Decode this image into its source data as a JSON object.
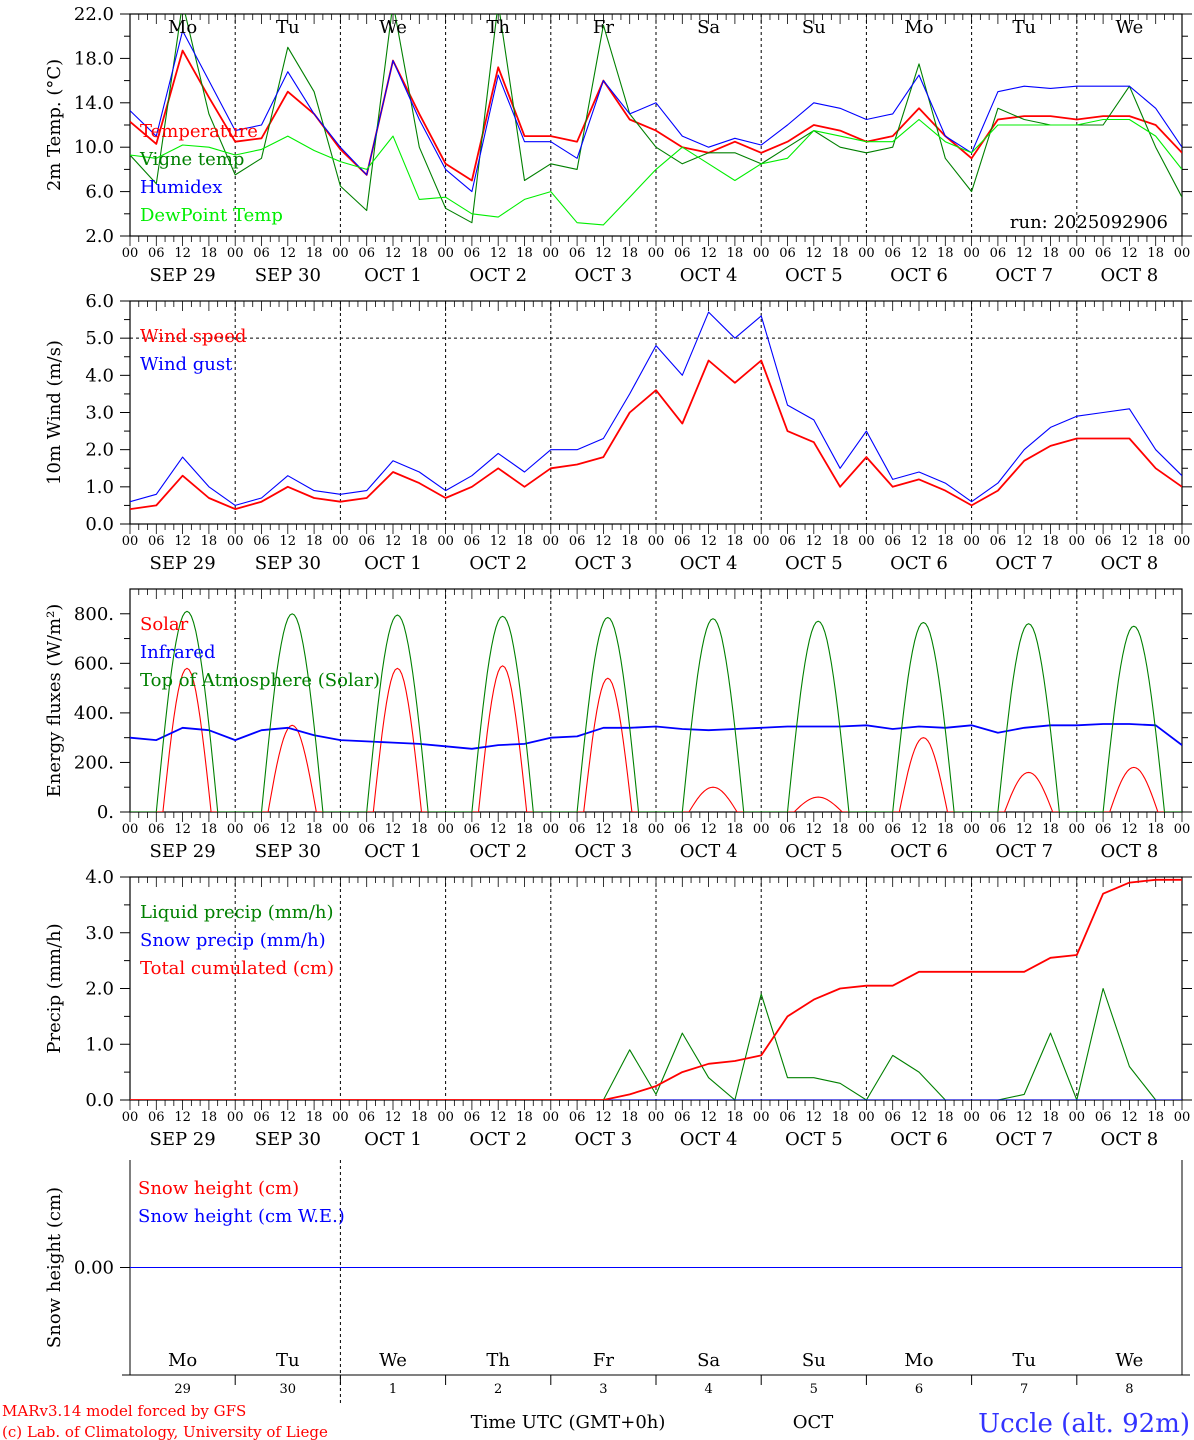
{
  "x_axis": {
    "hour_labels": [
      "00",
      "06",
      "12",
      "18"
    ],
    "date_labels": [
      "SEP  29",
      "SEP  30",
      "OCT   1",
      "OCT   2",
      "OCT   3",
      "OCT   4",
      "OCT   5",
      "OCT   6",
      "OCT   7",
      "OCT   8"
    ],
    "day_names": [
      {
        "name": "Mo",
        "weekend": false
      },
      {
        "name": "Tu",
        "weekend": false
      },
      {
        "name": "We",
        "weekend": false
      },
      {
        "name": "Th",
        "weekend": false
      },
      {
        "name": "Fr",
        "weekend": false
      },
      {
        "name": "Sa",
        "weekend": true
      },
      {
        "name": "Su",
        "weekend": true
      },
      {
        "name": "Mo",
        "weekend": false
      },
      {
        "name": "Tu",
        "weekend": false
      },
      {
        "name": "We",
        "weekend": false
      }
    ],
    "day_numbers": [
      "29",
      "30",
      "1",
      "2",
      "3",
      "4",
      "5",
      "6",
      "7",
      "8"
    ],
    "month": "OCT",
    "xlabel": "Time UTC (GMT+0h)",
    "weekend_color": "#ff0000"
  },
  "footer": {
    "model": "MARv3.14 model forced by GFS",
    "credit": "(c) Lab. of Climatology, University of Liege",
    "station": "Uccle (alt. 92m)"
  },
  "chart_data": [
    {
      "type": "line",
      "ylabel": "2m Temp. (°C)",
      "ylim": [
        2,
        22
      ],
      "yticks": [
        "2.0",
        "6.0",
        "10.0",
        "14.0",
        "18.0",
        "22.0"
      ],
      "annotation": "run: 2025092906",
      "x_step_hours": 6,
      "series": [
        {
          "name": "Temperature",
          "color": "#ff0000",
          "values": [
            12.3,
            10.3,
            18.7,
            14.5,
            10.5,
            10.8,
            15.0,
            13.0,
            9.8,
            7.5,
            17.8,
            13.0,
            8.5,
            7.0,
            17.2,
            11.0,
            11.0,
            10.5,
            16.0,
            12.5,
            11.5,
            10.0,
            9.5,
            10.5,
            9.5,
            10.5,
            12.0,
            11.5,
            10.5,
            11.0,
            13.5,
            11.0,
            9.0,
            12.5,
            12.8,
            12.8,
            12.5,
            12.8,
            12.8,
            12.0,
            9.5
          ]
        },
        {
          "name": "Vigne temp",
          "color": "#008000",
          "values": [
            9.3,
            6.7,
            23.0,
            13.0,
            7.5,
            9.0,
            19.0,
            15.0,
            6.5,
            4.3,
            23.0,
            10.0,
            4.5,
            3.2,
            23.0,
            7.0,
            8.5,
            8.0,
            21.0,
            13.0,
            10.0,
            8.5,
            9.5,
            9.5,
            8.5,
            10.0,
            11.5,
            10.0,
            9.5,
            10.0,
            17.5,
            9.0,
            6.0,
            13.5,
            12.5,
            12.0,
            12.0,
            12.0,
            15.5,
            10.0,
            5.5
          ]
        },
        {
          "name": "Humidex",
          "color": "#0000ff",
          "values": [
            13.3,
            11.0,
            20.5,
            16.0,
            11.5,
            12.0,
            16.8,
            13.0,
            10.0,
            7.5,
            17.8,
            12.5,
            8.0,
            6.0,
            16.5,
            10.5,
            10.5,
            9.0,
            16.0,
            13.0,
            14.0,
            11.0,
            10.0,
            10.8,
            10.2,
            12.0,
            14.0,
            13.5,
            12.5,
            13.0,
            16.5,
            11.0,
            9.5,
            15.0,
            15.5,
            15.3,
            15.5,
            15.5,
            15.5,
            13.5,
            10.0
          ]
        },
        {
          "name": "DewPoint Temp",
          "color": "#00ee00",
          "values": [
            9.3,
            9.0,
            10.2,
            10.0,
            9.3,
            9.8,
            11.0,
            9.7,
            8.7,
            8.0,
            11.0,
            5.3,
            5.5,
            4.0,
            3.7,
            5.3,
            6.0,
            3.2,
            3.0,
            5.5,
            8.0,
            10.0,
            8.5,
            7.0,
            8.5,
            9.0,
            11.5,
            11.0,
            10.5,
            10.5,
            12.5,
            10.5,
            9.5,
            12.0,
            12.0,
            12.0,
            12.0,
            12.5,
            12.5,
            11.0,
            8.0
          ]
        }
      ]
    },
    {
      "type": "line",
      "ylabel": "10m Wind (m/s)",
      "ylim": [
        0,
        6
      ],
      "yticks": [
        "0.0",
        "1.0",
        "2.0",
        "3.0",
        "4.0",
        "5.0",
        "6.0"
      ],
      "reference_line": 5.0,
      "x_step_hours": 6,
      "series": [
        {
          "name": "Wind speed",
          "color": "#ff0000",
          "values": [
            0.4,
            0.5,
            1.3,
            0.7,
            0.4,
            0.6,
            1.0,
            0.7,
            0.6,
            0.7,
            1.4,
            1.1,
            0.7,
            1.0,
            1.5,
            1.0,
            1.5,
            1.6,
            1.8,
            3.0,
            3.6,
            2.7,
            4.4,
            3.8,
            4.4,
            2.5,
            2.2,
            1.0,
            1.8,
            1.0,
            1.2,
            0.9,
            0.5,
            0.9,
            1.7,
            2.1,
            2.3,
            2.3,
            2.3,
            1.5,
            1.0
          ]
        },
        {
          "name": "Wind gust",
          "color": "#0000ff",
          "values": [
            0.6,
            0.8,
            1.8,
            1.0,
            0.5,
            0.7,
            1.3,
            0.9,
            0.8,
            0.9,
            1.7,
            1.4,
            0.9,
            1.3,
            1.9,
            1.4,
            2.0,
            2.0,
            2.3,
            3.5,
            4.8,
            4.0,
            5.7,
            5.0,
            5.6,
            3.2,
            2.8,
            1.5,
            2.5,
            1.2,
            1.4,
            1.1,
            0.6,
            1.1,
            2.0,
            2.6,
            2.9,
            3.0,
            3.1,
            2.0,
            1.3
          ]
        }
      ]
    },
    {
      "type": "line",
      "ylabel": "Energy fluxes (W/m²)",
      "ylim": [
        0,
        900
      ],
      "yticks": [
        "0.",
        "200.",
        "400.",
        "600.",
        "800."
      ],
      "series": [
        {
          "name": "Solar",
          "color": "#ff0000",
          "daily_peak": [
            580,
            350,
            580,
            590,
            540,
            100,
            60,
            300,
            160,
            180
          ]
        },
        {
          "name": "Infrared",
          "color": "#0000ff",
          "x_step_hours": 6,
          "values": [
            300,
            290,
            340,
            330,
            290,
            330,
            340,
            310,
            290,
            285,
            280,
            275,
            265,
            255,
            270,
            275,
            300,
            305,
            340,
            340,
            345,
            335,
            330,
            335,
            340,
            345,
            345,
            345,
            350,
            335,
            345,
            340,
            350,
            320,
            340,
            350,
            350,
            355,
            355,
            350,
            270
          ]
        },
        {
          "name": "Top of Atmosphere (Solar)",
          "color": "#008000",
          "daily_peak": [
            810,
            800,
            795,
            790,
            785,
            780,
            770,
            765,
            760,
            750
          ]
        }
      ]
    },
    {
      "type": "line",
      "ylabel": "Precip (mm/h)",
      "ylim": [
        0,
        4
      ],
      "yticks": [
        "0.0",
        "1.0",
        "2.0",
        "3.0",
        "4.0"
      ],
      "x_step_hours": 6,
      "series": [
        {
          "name": "Liquid precip (mm/h)",
          "color": "#008000",
          "values": [
            0,
            0,
            0,
            0,
            0,
            0,
            0,
            0,
            0,
            0,
            0,
            0,
            0,
            0,
            0,
            0,
            0,
            0,
            0,
            0.9,
            0.1,
            1.2,
            0.4,
            0,
            1.9,
            0.4,
            0.4,
            0.3,
            0,
            0.8,
            0.5,
            0,
            0,
            0,
            0.1,
            1.2,
            0,
            2.0,
            0.6,
            0,
            0
          ]
        },
        {
          "name": "Snow precip (mm/h)",
          "color": "#0000ff",
          "values": [
            0,
            0,
            0,
            0,
            0,
            0,
            0,
            0,
            0,
            0,
            0,
            0,
            0,
            0,
            0,
            0,
            0,
            0,
            0,
            0,
            0,
            0,
            0,
            0,
            0,
            0,
            0,
            0,
            0,
            0,
            0,
            0,
            0,
            0,
            0,
            0,
            0,
            0,
            0,
            0,
            0
          ]
        },
        {
          "name": "Total cumulated (cm)",
          "color": "#ff0000",
          "values": [
            0,
            0,
            0,
            0,
            0,
            0,
            0,
            0,
            0,
            0,
            0,
            0,
            0,
            0,
            0,
            0,
            0,
            0,
            0,
            0.1,
            0.25,
            0.5,
            0.65,
            0.7,
            0.8,
            1.5,
            1.8,
            2.0,
            2.05,
            2.05,
            2.3,
            2.3,
            2.3,
            2.3,
            2.3,
            2.55,
            2.6,
            3.7,
            3.9,
            3.95,
            3.95
          ]
        }
      ]
    },
    {
      "type": "line",
      "ylabel": "Snow height (cm)",
      "ylim": [
        -1,
        1
      ],
      "yticks": [
        "0.00"
      ],
      "x_step_hours": 240,
      "series": [
        {
          "name": "Snow height (cm)",
          "color": "#ff0000",
          "values": [
            0,
            0
          ]
        },
        {
          "name": "Snow height (cm W.E.)",
          "color": "#0000ff",
          "values": [
            0,
            0
          ]
        }
      ]
    }
  ]
}
